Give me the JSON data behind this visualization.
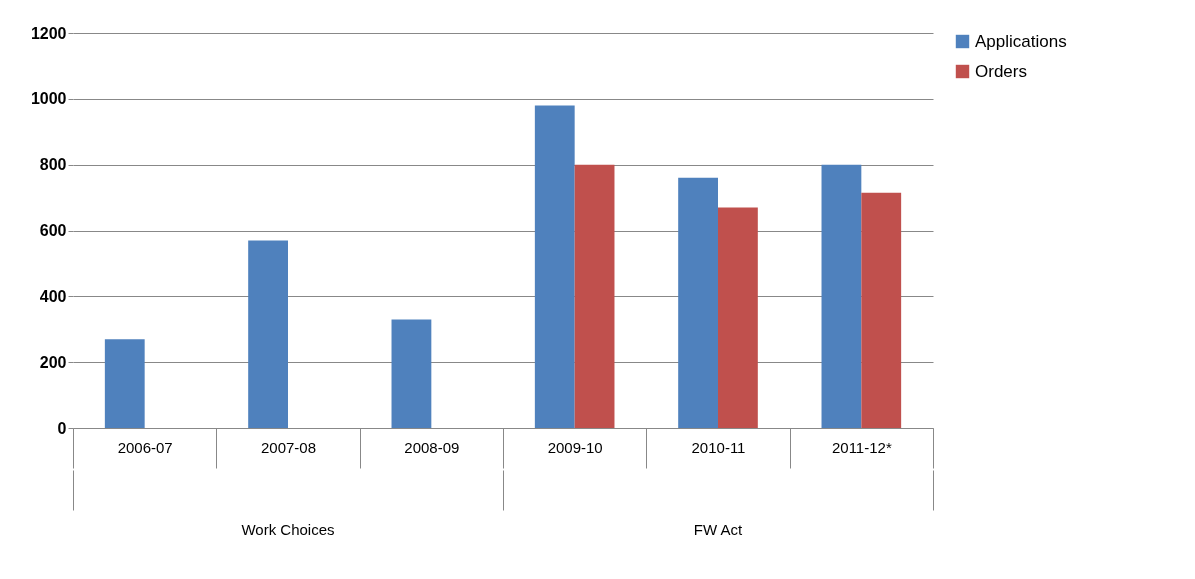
{
  "chart_data": {
    "type": "bar",
    "categories": [
      "2006-07",
      "2007-08",
      "2008-09",
      "2009-10",
      "2010-11",
      "2011-12*"
    ],
    "series": [
      {
        "name": "Applications",
        "color": "#4f81bd",
        "values": [
          270,
          570,
          330,
          980,
          760,
          800
        ]
      },
      {
        "name": "Orders",
        "color": "#c0504d",
        "values": [
          null,
          null,
          null,
          800,
          670,
          715
        ]
      }
    ],
    "ylim": [
      0,
      1200
    ],
    "yticks": [
      0,
      200,
      400,
      600,
      800,
      1000,
      1200
    ],
    "grid": "y",
    "legend": "right",
    "annotations": [
      "Work Choices",
      "FW Act"
    ]
  }
}
